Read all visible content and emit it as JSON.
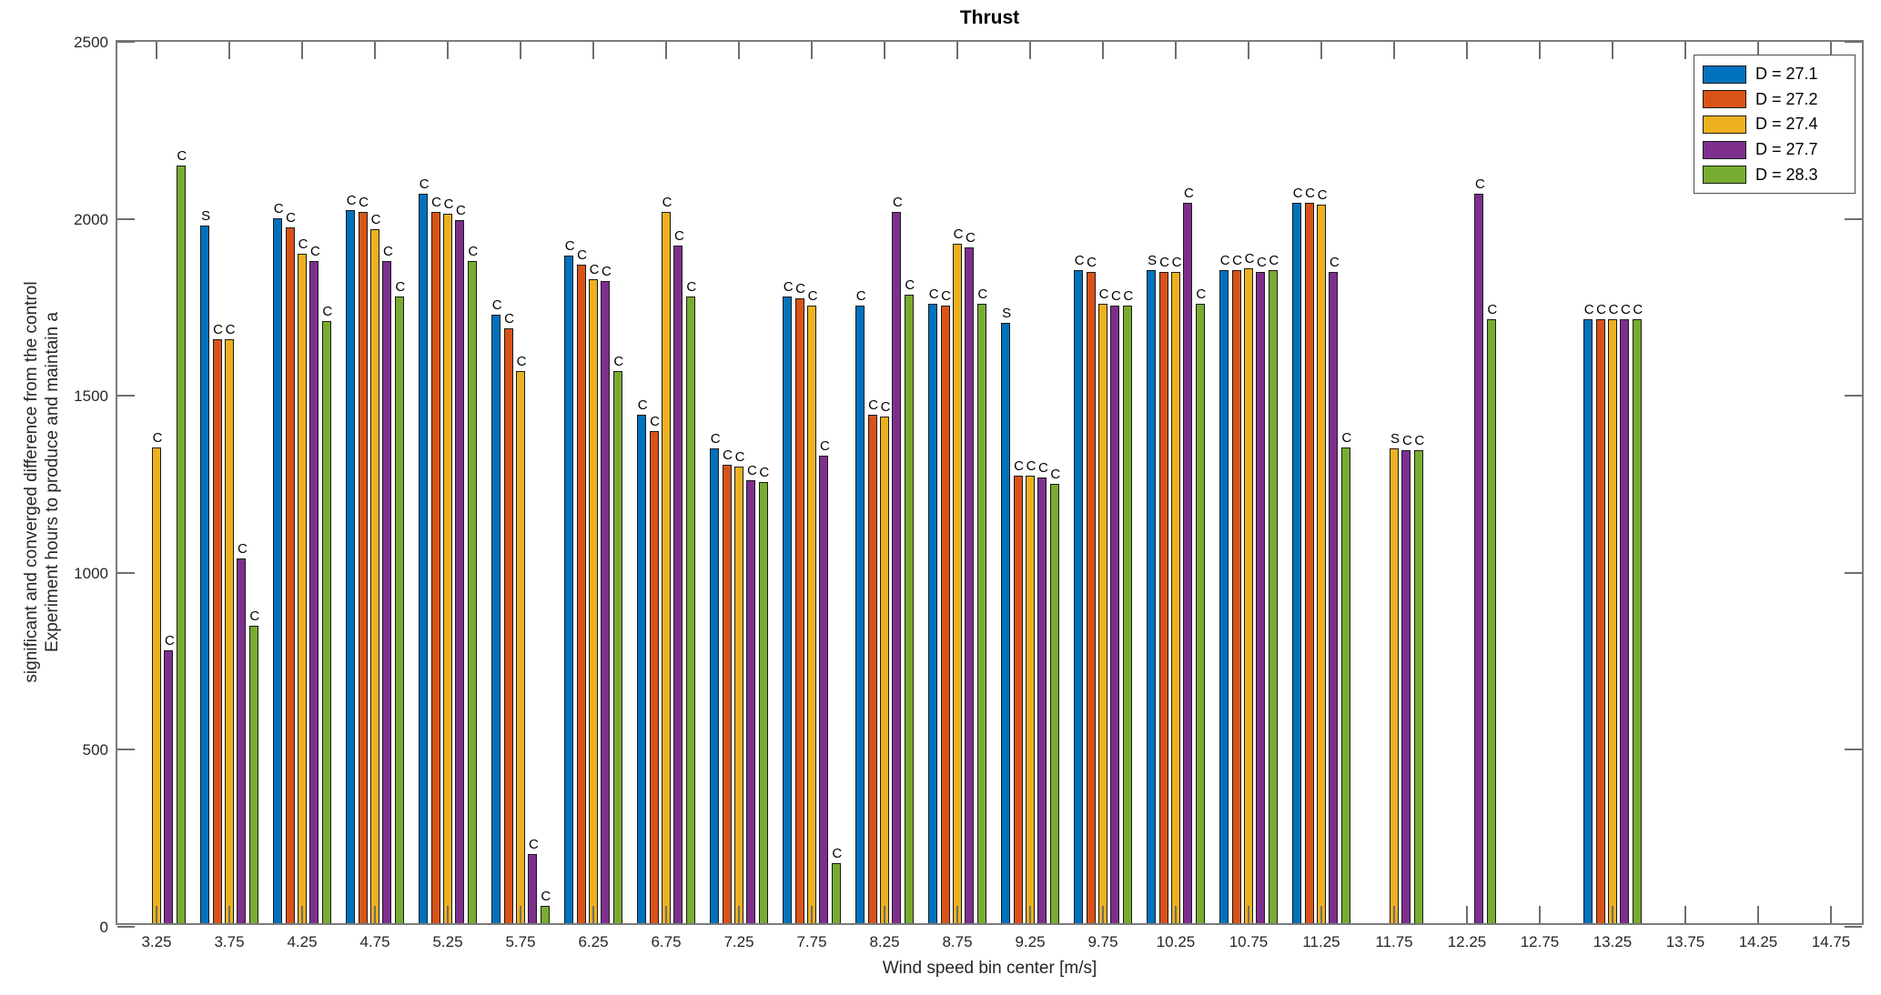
{
  "title": "Thrust",
  "xlabel": "Wind speed bin center [m/s]",
  "ylabel_lines": [
    "Experiment hours to produce and maintain a",
    "significant and converged difference from the control"
  ],
  "axis_color": "#7b7b7b",
  "chart_data": {
    "type": "bar",
    "title": "Thrust",
    "xlabel": "Wind speed bin center [m/s]",
    "ylabel": "Experiment hours to produce and maintain a significant and converged difference from the control",
    "ylim": [
      0,
      2500
    ],
    "yticks": [
      0,
      500,
      1000,
      1500,
      2000,
      2500
    ],
    "grid": false,
    "legend_position": "top-right",
    "categories": [
      "3.25",
      "3.75",
      "4.25",
      "4.75",
      "5.25",
      "5.75",
      "6.25",
      "6.75",
      "7.25",
      "7.75",
      "8.25",
      "8.75",
      "9.25",
      "9.75",
      "10.25",
      "10.75",
      "11.25",
      "11.75",
      "12.25",
      "12.75",
      "13.25",
      "13.75",
      "14.25",
      "14.75"
    ],
    "series": [
      {
        "name": "D = 27.1",
        "color": "#0072BD",
        "values": [
          0,
          1970,
          1990,
          2015,
          2060,
          1720,
          1885,
          1435,
          1340,
          1770,
          1745,
          1750,
          1695,
          1845,
          1845,
          1845,
          2035,
          0,
          0,
          0,
          1705,
          0,
          0,
          0
        ],
        "annotations": [
          "",
          "S",
          "C",
          "C",
          "C",
          "C",
          "C",
          "C",
          "C",
          "C",
          "C",
          "C",
          "S",
          "C",
          "S",
          "C",
          "C",
          "",
          "",
          "",
          "C",
          "",
          "",
          ""
        ]
      },
      {
        "name": "D = 27.2",
        "color": "#D95319",
        "values": [
          0,
          1650,
          1965,
          2010,
          2010,
          1680,
          1860,
          1390,
          1295,
          1765,
          1435,
          1745,
          1265,
          1840,
          1840,
          1845,
          2035,
          0,
          0,
          0,
          1705,
          0,
          0,
          0
        ],
        "annotations": [
          "",
          "C",
          "C",
          "C",
          "C",
          "C",
          "C",
          "C",
          "C",
          "C",
          "C",
          "C",
          "C",
          "C",
          "C",
          "C",
          "C",
          "",
          "",
          "",
          "C",
          "",
          "",
          ""
        ]
      },
      {
        "name": "D = 27.4",
        "color": "#EDB120",
        "values": [
          1345,
          1650,
          1890,
          1960,
          2005,
          1560,
          1820,
          2010,
          1290,
          1745,
          1430,
          1920,
          1265,
          1750,
          1840,
          1850,
          2030,
          1340,
          0,
          0,
          1705,
          0,
          0,
          0
        ],
        "annotations": [
          "C",
          "C",
          "C",
          "C",
          "C",
          "C",
          "C",
          "C",
          "C",
          "C",
          "C",
          "C",
          "C",
          "C",
          "C",
          "C",
          "C",
          "S",
          "",
          "",
          "C",
          "",
          "",
          ""
        ]
      },
      {
        "name": "D = 27.7",
        "color": "#7E2F8E",
        "values": [
          770,
          1030,
          1870,
          1870,
          1985,
          195,
          1815,
          1915,
          1250,
          1320,
          2010,
          1910,
          1260,
          1745,
          2035,
          1840,
          1840,
          1335,
          2060,
          0,
          1705,
          0,
          0,
          0
        ],
        "annotations": [
          "C",
          "C",
          "C",
          "C",
          "C",
          "C",
          "C",
          "C",
          "C",
          "C",
          "C",
          "C",
          "C",
          "C",
          "C",
          "C",
          "C",
          "C",
          "C",
          "",
          "C",
          "",
          "",
          ""
        ]
      },
      {
        "name": "D = 28.3",
        "color": "#77AC30",
        "values": [
          2140,
          840,
          1700,
          1770,
          1870,
          50,
          1560,
          1770,
          1245,
          170,
          1775,
          1750,
          1240,
          1745,
          1750,
          1845,
          1345,
          1335,
          1705,
          0,
          1705,
          0,
          0,
          0
        ],
        "annotations": [
          "C",
          "C",
          "C",
          "C",
          "C",
          "C",
          "C",
          "C",
          "C",
          "C",
          "C",
          "C",
          "C",
          "C",
          "C",
          "C",
          "C",
          "C",
          "C",
          "",
          "C",
          "",
          "",
          ""
        ]
      }
    ]
  }
}
